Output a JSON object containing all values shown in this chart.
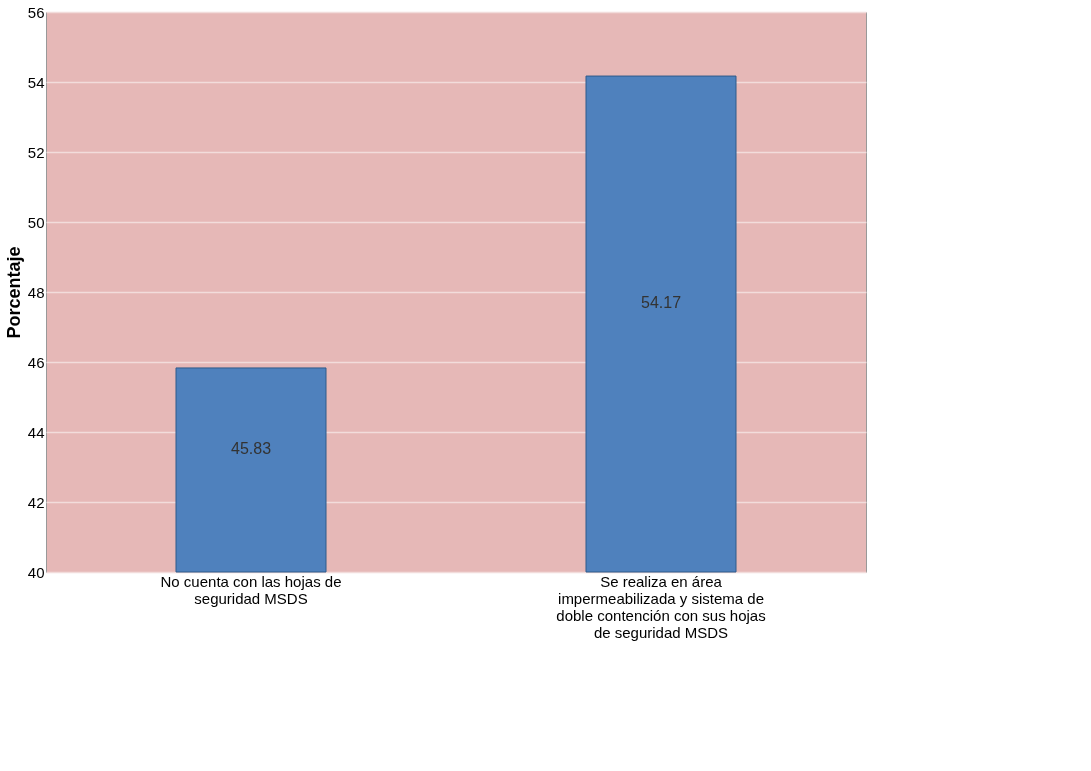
{
  "chart_data": {
    "type": "bar",
    "ylabel": "Porcentaje",
    "categories": [
      "No cuenta con las hojas de seguridad MSDS",
      "Se realiza en área impermeabilizada y sistema de doble contención con sus hojas de seguridad MSDS"
    ],
    "values": [
      45.83,
      54.17
    ],
    "color": "#4f81bd",
    "ylim": [
      40,
      56
    ],
    "yticks": [
      40,
      42,
      44,
      46,
      48,
      50,
      52,
      54,
      56
    ],
    "grid": "y",
    "data_labels": true
  }
}
